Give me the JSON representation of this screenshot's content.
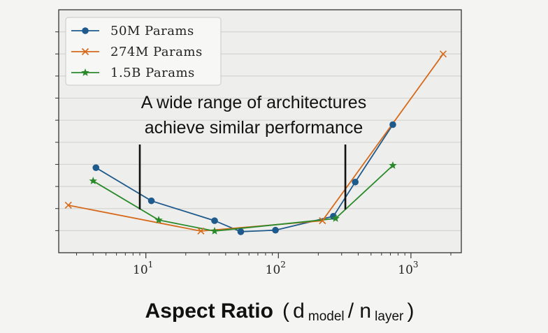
{
  "chart_data": {
    "type": "line",
    "xscale": "log",
    "xlim": [
      2.2,
      2400
    ],
    "ylim": [
      0,
      11
    ],
    "yticks_unlabeled": [
      1,
      2,
      3,
      4,
      5,
      6,
      7,
      8,
      9,
      10
    ],
    "grid": "horizontal",
    "xlabel": {
      "main": "Aspect Ratio",
      "paren_open": "(",
      "sym1": "d",
      "sub1": "model",
      "slash": " / ",
      "sym2": "n",
      "sub2": "layer",
      "paren_close": ")"
    },
    "xticks": [
      {
        "value": 10,
        "base": "10",
        "exp": "1"
      },
      {
        "value": 100,
        "base": "10",
        "exp": "2"
      },
      {
        "value": 1000,
        "base": "10",
        "exp": "3"
      }
    ],
    "legend_position": "top-left",
    "series": [
      {
        "name": "50M Params",
        "color": "#1f5a8c",
        "marker": "circle",
        "points": [
          [
            4.2,
            3.85
          ],
          [
            11,
            2.35
          ],
          [
            33,
            1.45
          ],
          [
            52,
            0.95
          ],
          [
            95,
            1.02
          ],
          [
            260,
            1.65
          ],
          [
            380,
            3.2
          ],
          [
            730,
            5.8
          ]
        ]
      },
      {
        "name": "274M Params",
        "color": "#d66a1a",
        "marker": "x",
        "points": [
          [
            2.6,
            2.15
          ],
          [
            26,
            0.98
          ],
          [
            215,
            1.45
          ],
          [
            1750,
            9.0
          ]
        ]
      },
      {
        "name": "1.5B Params",
        "color": "#2a8a2a",
        "marker": "star",
        "points": [
          [
            4.0,
            3.25
          ],
          [
            12.5,
            1.48
          ],
          [
            33,
            0.98
          ],
          [
            270,
            1.55
          ],
          [
            730,
            3.95
          ]
        ]
      }
    ],
    "annotation": {
      "lines": [
        "A wide range of architectures",
        "achieve similar performance"
      ],
      "pointer_x": [
        9,
        320
      ]
    }
  }
}
